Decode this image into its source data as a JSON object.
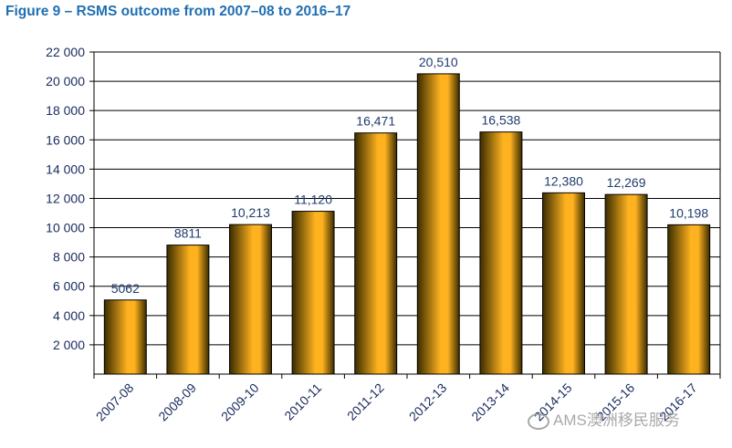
{
  "figure": {
    "title": "Figure 9 – RSMS outcome from 2007–08 to 2016–17"
  },
  "chart_data": {
    "type": "bar",
    "title": "Figure 9 – RSMS outcome from 2007–08 to 2016–17",
    "xlabel": "",
    "ylabel": "",
    "categories": [
      "2007-08",
      "2008-09",
      "2009-10",
      "2010-11",
      "2011-12",
      "2012-13",
      "2013-14",
      "2014-15",
      "2015-16",
      "2016-17"
    ],
    "values": [
      5062,
      8811,
      10213,
      11120,
      16471,
      20510,
      16538,
      12380,
      12269,
      10198
    ],
    "data_labels": [
      "5062",
      "8811",
      "10,213",
      "11,120",
      "16,471",
      "20,510",
      "16,538",
      "12,380",
      "12,269",
      "10,198"
    ],
    "ylim": [
      0,
      22000
    ],
    "yticks": [
      2000,
      4000,
      6000,
      8000,
      10000,
      12000,
      14000,
      16000,
      18000,
      20000,
      22000
    ],
    "ytick_labels": [
      "2 000",
      "4 000",
      "6 000",
      "8 000",
      "10 000",
      "12 000",
      "14 000",
      "16 000",
      "18 000",
      "20 000",
      "22 000"
    ],
    "grid": true,
    "legend": "none",
    "colors": {
      "bar_dark": "#3a2c00",
      "bar_light": "#ffb21f",
      "data_label": "#1f3b6e",
      "title": "#1f6fb2",
      "axis_text": "#1a2a5e",
      "grid": "#000000"
    }
  },
  "watermark": {
    "text": "AMS澳洲移民服务",
    "icon": "wechat-icon"
  }
}
